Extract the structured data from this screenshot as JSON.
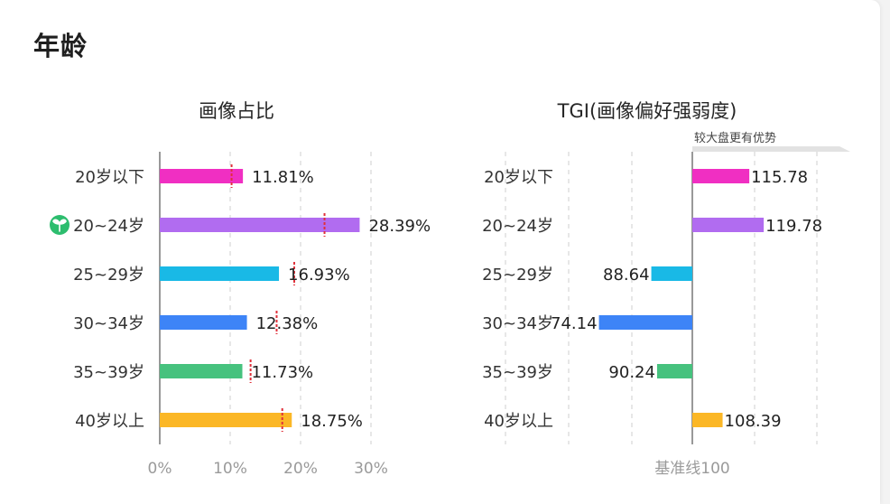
{
  "header": {
    "title": "年龄"
  },
  "chart_data": [
    {
      "type": "bar",
      "orientation": "horizontal",
      "title": "画像占比",
      "categories": [
        "20岁以下",
        "20~24岁",
        "25~29岁",
        "30~34岁",
        "35~39岁",
        "40岁以上"
      ],
      "values": [
        11.81,
        28.39,
        16.93,
        12.38,
        11.73,
        18.75
      ],
      "value_labels": [
        "11.81%",
        "28.39%",
        "16.93%",
        "12.38%",
        "11.73%",
        "18.75%"
      ],
      "reference_markers": [
        10.2,
        23.4,
        19.1,
        16.6,
        12.9,
        17.4
      ],
      "colors": [
        "#f02fc2",
        "#b16cf0",
        "#19b9e6",
        "#3d84f7",
        "#46c27e",
        "#fbb726"
      ],
      "xlim": [
        0,
        30
      ],
      "x_ticks": [
        "0%",
        "10%",
        "20%",
        "30%"
      ],
      "grid": true,
      "highlight_icon": "sprout-icon"
    },
    {
      "type": "bar",
      "orientation": "horizontal",
      "title": "TGI(画像偏好强弱度)",
      "categories": [
        "20岁以下",
        "20~24岁",
        "25~29岁",
        "30~34岁",
        "35~39岁",
        "40岁以上"
      ],
      "values": [
        115.78,
        119.78,
        88.64,
        74.14,
        90.24,
        108.39
      ],
      "value_labels": [
        "115.78",
        "119.78",
        "88.64",
        "74.14",
        "90.24",
        "108.39"
      ],
      "colors": [
        "#f02fc2",
        "#b16cf0",
        "#19b9e6",
        "#3d84f7",
        "#46c27e",
        "#fbb726"
      ],
      "baseline": 100,
      "baseline_label": "基准线100",
      "advantage_label": "较大盘更有优势",
      "xlim": [
        50,
        150
      ],
      "grid": true
    }
  ]
}
